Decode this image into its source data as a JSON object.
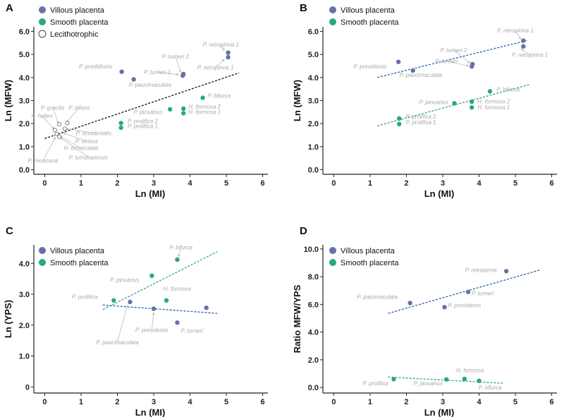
{
  "colors": {
    "villous": "#6472a8",
    "smooth": "#2aa68a",
    "lecitho_stroke": "#666666",
    "trend_black": "#111111",
    "trend_blue": "#2a5db0",
    "trend_green": "#2aa68a",
    "label": "#a9a9a9"
  },
  "chart_data": [
    {
      "id": "A",
      "type": "scatter",
      "letter": "A",
      "xlabel": "Ln (MI)",
      "ylabel": "Ln (MFW)",
      "xlim": [
        -0.3,
        6.3
      ],
      "ylim": [
        -0.2,
        6.2
      ],
      "xticks": [
        0,
        1,
        2,
        3,
        4,
        5,
        6
      ],
      "xticklabels": [
        "0",
        "1",
        "2",
        "3",
        "4",
        "5",
        "6"
      ],
      "yticks": [
        0,
        1,
        2,
        3,
        4,
        5,
        6
      ],
      "yticklabels": [
        "0.0",
        "1.0",
        "2.0",
        "3.0",
        "4.0",
        "5.0",
        "6.0"
      ],
      "legend": [
        {
          "label": "Villous placenta",
          "kind": "villous"
        },
        {
          "label": "Smooth placenta",
          "kind": "smooth"
        },
        {
          "label": "Lecithotrophic",
          "kind": "lecitho"
        }
      ],
      "trendlines": [
        {
          "color": "trend_black",
          "from": [
            0,
            1.35
          ],
          "to": [
            5.35,
            4.2
          ]
        }
      ],
      "series": [
        {
          "name": "Villous placenta",
          "kind": "villous",
          "points": [
            {
              "x": 5.05,
              "y": 5.08
            },
            {
              "x": 5.05,
              "y": 4.88
            },
            {
              "x": 3.82,
              "y": 4.15
            },
            {
              "x": 3.8,
              "y": 4.08
            },
            {
              "x": 2.12,
              "y": 4.25
            },
            {
              "x": 2.45,
              "y": 3.92
            }
          ]
        },
        {
          "name": "Smooth placenta",
          "kind": "smooth",
          "points": [
            {
              "x": 4.35,
              "y": 3.12
            },
            {
              "x": 3.45,
              "y": 2.62
            },
            {
              "x": 3.82,
              "y": 2.65
            },
            {
              "x": 3.82,
              "y": 2.45
            },
            {
              "x": 2.1,
              "y": 2.02
            },
            {
              "x": 2.1,
              "y": 1.82
            }
          ]
        },
        {
          "name": "Lecithotrophic",
          "kind": "lecitho",
          "points": [
            {
              "x": 0.4,
              "y": 1.97
            },
            {
              "x": 0.62,
              "y": 2.02
            },
            {
              "x": 0.28,
              "y": 1.72
            },
            {
              "x": 0.55,
              "y": 1.78
            },
            {
              "x": 0.33,
              "y": 1.55
            },
            {
              "x": 0.4,
              "y": 1.43
            }
          ]
        }
      ],
      "annotations": [
        {
          "text": "P. retropinna 1",
          "x": 4.85,
          "y": 5.35,
          "ax": 4.95,
          "ay": 5.15
        },
        {
          "text": "P. retropinna 1",
          "x": 4.7,
          "y": 4.35,
          "ax": 4.95,
          "ay": 4.8
        },
        {
          "text": "P. turneri 2",
          "x": 3.6,
          "y": 4.82,
          "ax": 3.75,
          "ay": 4.2
        },
        {
          "text": "P. turneri 1",
          "x": 3.1,
          "y": 4.15,
          "ax": 3.7,
          "ay": 4.12
        },
        {
          "text": "P. predidionis",
          "x": 1.4,
          "y": 4.4
        },
        {
          "text": "P. paucimaculata",
          "x": 2.9,
          "y": 3.6
        },
        {
          "text": "P. bifurca",
          "x": 4.8,
          "y": 3.12
        },
        {
          "text": "H. formosa 2",
          "x": 4.4,
          "y": 2.65
        },
        {
          "text": "H. formosa 1",
          "x": 4.4,
          "y": 2.42
        },
        {
          "text": "P. januarius",
          "x": 2.85,
          "y": 2.42
        },
        {
          "text": "P. prolifica 2",
          "x": 2.7,
          "y": 2.02
        },
        {
          "text": "P. prolifica 1",
          "x": 2.7,
          "y": 1.8
        },
        {
          "text": "P. gracilis",
          "x": 0.22,
          "y": 2.6,
          "ax": 0.38,
          "ay": 2.0
        },
        {
          "text": "P. infans",
          "x": 0.95,
          "y": 2.6,
          "ax": 0.6,
          "ay": 2.05
        },
        {
          "text": "X. helleri",
          "x": -0.08,
          "y": 2.25,
          "ax": 0.26,
          "ay": 1.75
        },
        {
          "text": "P. occidentalis",
          "x": 1.35,
          "y": 1.5,
          "ax": 0.58,
          "ay": 1.78
        },
        {
          "text": "P. viriosa",
          "x": 1.15,
          "y": 1.15,
          "ax": 0.5,
          "ay": 1.6
        },
        {
          "text": "H. bimaculata",
          "x": 1.0,
          "y": 0.85,
          "ax": 0.42,
          "ay": 1.45
        },
        {
          "text": "P. turrubarensis",
          "x": 1.2,
          "y": 0.45,
          "ax": 0.42,
          "ay": 1.4
        },
        {
          "text": "P. mexicana",
          "x": -0.05,
          "y": 0.3,
          "ax": 0.3,
          "ay": 1.42
        }
      ]
    },
    {
      "id": "B",
      "type": "scatter",
      "letter": "B",
      "xlabel": "Ln (MI)",
      "ylabel": "Ln (MFW)",
      "xlim": [
        -0.3,
        6.3
      ],
      "ylim": [
        -0.2,
        6.2
      ],
      "xticks": [
        0,
        1,
        2,
        3,
        4,
        5,
        6
      ],
      "xticklabels": [
        "0",
        "1",
        "2",
        "3",
        "4",
        "5",
        "6"
      ],
      "yticks": [
        0,
        1,
        2,
        3,
        4,
        5,
        6
      ],
      "yticklabels": [
        "0.0",
        "1.0",
        "2.0",
        "3.0",
        "4.0",
        "5.0",
        "6.0"
      ],
      "legend": [
        {
          "label": "Villous placenta",
          "kind": "villous"
        },
        {
          "label": "Smooth placenta",
          "kind": "smooth"
        }
      ],
      "trendlines": [
        {
          "color": "trend_blue",
          "from": [
            1.2,
            4.0
          ],
          "to": [
            5.3,
            5.6
          ]
        },
        {
          "color": "trend_green",
          "from": [
            1.2,
            1.9
          ],
          "to": [
            5.4,
            3.7
          ]
        }
      ],
      "series": [
        {
          "name": "Villous placenta",
          "kind": "villous",
          "points": [
            {
              "x": 5.22,
              "y": 5.6
            },
            {
              "x": 5.22,
              "y": 5.35
            },
            {
              "x": 3.82,
              "y": 4.58
            },
            {
              "x": 3.8,
              "y": 4.48
            },
            {
              "x": 1.78,
              "y": 4.68
            },
            {
              "x": 2.18,
              "y": 4.3
            }
          ]
        },
        {
          "name": "Smooth placenta",
          "kind": "smooth",
          "points": [
            {
              "x": 4.3,
              "y": 3.4
            },
            {
              "x": 3.32,
              "y": 2.88
            },
            {
              "x": 3.8,
              "y": 2.95
            },
            {
              "x": 3.8,
              "y": 2.7
            },
            {
              "x": 1.8,
              "y": 2.22
            },
            {
              "x": 1.8,
              "y": 1.98
            }
          ]
        }
      ],
      "annotations": [
        {
          "text": "P. retropinna 1",
          "x": 5.0,
          "y": 5.95,
          "ax": 5.15,
          "ay": 5.65
        },
        {
          "text": "P. retropinna 1",
          "x": 5.4,
          "y": 4.9,
          "ax": 5.15,
          "ay": 5.25
        },
        {
          "text": "P. turneri 2",
          "x": 3.3,
          "y": 5.1,
          "ax": 3.75,
          "ay": 4.62
        },
        {
          "text": "P. turneri",
          "x": 3.1,
          "y": 4.62,
          "ax": 3.72,
          "ay": 4.5
        },
        {
          "text": "P. presidionis",
          "x": 1.0,
          "y": 4.4
        },
        {
          "text": "P. paucimaculata",
          "x": 2.4,
          "y": 4.02
        },
        {
          "text": "P. bifurca",
          "x": 4.8,
          "y": 3.4
        },
        {
          "text": "H. formosa 2",
          "x": 4.4,
          "y": 2.88
        },
        {
          "text": "H. formosa 1",
          "x": 4.4,
          "y": 2.62
        },
        {
          "text": "P. januarius",
          "x": 2.75,
          "y": 2.85
        },
        {
          "text": "P. prolifica 2",
          "x": 2.4,
          "y": 2.22
        },
        {
          "text": "P. prolifica 1",
          "x": 2.4,
          "y": 1.97
        }
      ]
    },
    {
      "id": "C",
      "type": "scatter",
      "letter": "C",
      "xlabel": "Ln (MI)",
      "ylabel": "Ln (YPS)",
      "xlim": [
        -0.3,
        6.3
      ],
      "ylim": [
        -0.2,
        4.6
      ],
      "xticks": [
        0,
        1,
        2,
        3,
        4,
        5,
        6
      ],
      "xticklabels": [
        "0",
        "1",
        "2",
        "3",
        "4",
        "5",
        "6"
      ],
      "yticks": [
        0,
        1,
        2,
        3,
        4
      ],
      "yticklabels": [
        "0",
        "1.0",
        "2.0",
        "3.0",
        "4.0"
      ],
      "legend": [
        {
          "label": "Villous placenta",
          "kind": "villous"
        },
        {
          "label": "Smooth placenta",
          "kind": "smooth"
        }
      ],
      "trendlines": [
        {
          "color": "trend_green",
          "from": [
            1.6,
            2.5
          ],
          "to": [
            4.75,
            4.38
          ]
        },
        {
          "color": "trend_blue",
          "from": [
            1.6,
            2.65
          ],
          "to": [
            4.75,
            2.38
          ]
        }
      ],
      "series": [
        {
          "name": "Villous placenta",
          "kind": "villous",
          "points": [
            {
              "x": 2.35,
              "y": 2.75
            },
            {
              "x": 3.0,
              "y": 2.53
            },
            {
              "x": 3.65,
              "y": 2.08
            },
            {
              "x": 4.45,
              "y": 2.56
            }
          ]
        },
        {
          "name": "Smooth placenta",
          "kind": "smooth",
          "points": [
            {
              "x": 1.9,
              "y": 2.8
            },
            {
              "x": 2.95,
              "y": 3.6
            },
            {
              "x": 3.35,
              "y": 2.8
            },
            {
              "x": 3.65,
              "y": 4.12
            }
          ]
        }
      ],
      "annotations": [
        {
          "text": "P. bifurca",
          "x": 3.75,
          "y": 4.45,
          "ax": 3.68,
          "ay": 4.2
        },
        {
          "text": "P. januarius",
          "x": 2.2,
          "y": 3.4
        },
        {
          "text": "H. formosa",
          "x": 3.65,
          "y": 3.12
        },
        {
          "text": "P. prolifica",
          "x": 1.1,
          "y": 2.85
        },
        {
          "text": "P. paucimaculata",
          "x": 2.0,
          "y": 1.38,
          "ax": 2.28,
          "ay": 2.66
        },
        {
          "text": "P. presidionis",
          "x": 2.95,
          "y": 1.78,
          "ax": 3.0,
          "ay": 2.42
        },
        {
          "text": "P. turneri",
          "x": 4.05,
          "y": 1.75
        }
      ]
    },
    {
      "id": "D",
      "type": "scatter",
      "letter": "D",
      "xlabel": "Ln (MI)",
      "ylabel": "Ratio MFW/YPS",
      "xlim": [
        -0.3,
        6.3
      ],
      "ylim": [
        -0.4,
        10.3
      ],
      "xticks": [
        0,
        1,
        2,
        3,
        4,
        5,
        6
      ],
      "xticklabels": [
        "0",
        "1",
        "2",
        "3",
        "4",
        "5",
        "6"
      ],
      "yticks": [
        0,
        2,
        4,
        6,
        8,
        10
      ],
      "yticklabels": [
        "0.0",
        "2.0",
        "4.0",
        "6.0",
        "8.0",
        "10.0"
      ],
      "legend": [
        {
          "label": "Villous placenta",
          "kind": "villous"
        },
        {
          "label": "Smooth placenta",
          "kind": "smooth"
        }
      ],
      "trendlines": [
        {
          "color": "trend_blue",
          "from": [
            1.5,
            5.35
          ],
          "to": [
            5.7,
            8.5
          ]
        },
        {
          "color": "trend_green",
          "from": [
            1.5,
            0.75
          ],
          "to": [
            4.7,
            0.3
          ]
        }
      ],
      "series": [
        {
          "name": "Villous placenta",
          "kind": "villous",
          "points": [
            {
              "x": 2.1,
              "y": 6.1
            },
            {
              "x": 3.05,
              "y": 5.8
            },
            {
              "x": 3.7,
              "y": 6.9
            },
            {
              "x": 4.75,
              "y": 8.4
            }
          ]
        },
        {
          "name": "Smooth placenta",
          "kind": "smooth",
          "points": [
            {
              "x": 1.65,
              "y": 0.6
            },
            {
              "x": 3.1,
              "y": 0.58
            },
            {
              "x": 3.6,
              "y": 0.62
            },
            {
              "x": 4.0,
              "y": 0.48
            }
          ]
        }
      ],
      "annotations": [
        {
          "text": "P. retropinna",
          "x": 4.05,
          "y": 8.35
        },
        {
          "text": "P. paicimaculata",
          "x": 1.2,
          "y": 6.4
        },
        {
          "text": "P. turneri",
          "x": 4.1,
          "y": 6.65
        },
        {
          "text": "P. presidionis",
          "x": 3.6,
          "y": 5.8
        },
        {
          "text": "H. formosa",
          "x": 3.75,
          "y": 1.1
        },
        {
          "text": "P. prolifica",
          "x": 1.15,
          "y": 0.15
        },
        {
          "text": "P. januarius",
          "x": 2.6,
          "y": 0.15
        },
        {
          "text": "P. bifurca",
          "x": 4.3,
          "y": -0.15
        }
      ]
    }
  ]
}
